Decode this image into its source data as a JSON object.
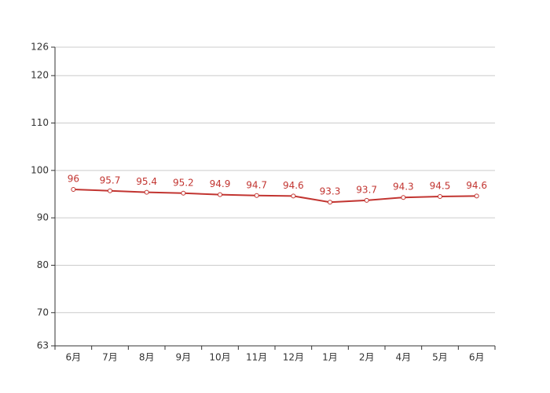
{
  "chart_data": {
    "type": "line",
    "categories": [
      "6月",
      "7月",
      "8月",
      "9月",
      "10月",
      "11月",
      "12月",
      "1月",
      "2月",
      "4月",
      "5月",
      "6月"
    ],
    "series": [
      {
        "name": "series",
        "color": "#c23531",
        "values": [
          96,
          95.7,
          95.4,
          95.2,
          94.9,
          94.7,
          94.6,
          93.3,
          93.7,
          94.3,
          94.5,
          94.6
        ]
      }
    ],
    "ylim": [
      63,
      126
    ],
    "yticks": [
      63,
      70,
      80,
      90,
      100,
      110,
      120,
      126
    ],
    "grid": true
  }
}
